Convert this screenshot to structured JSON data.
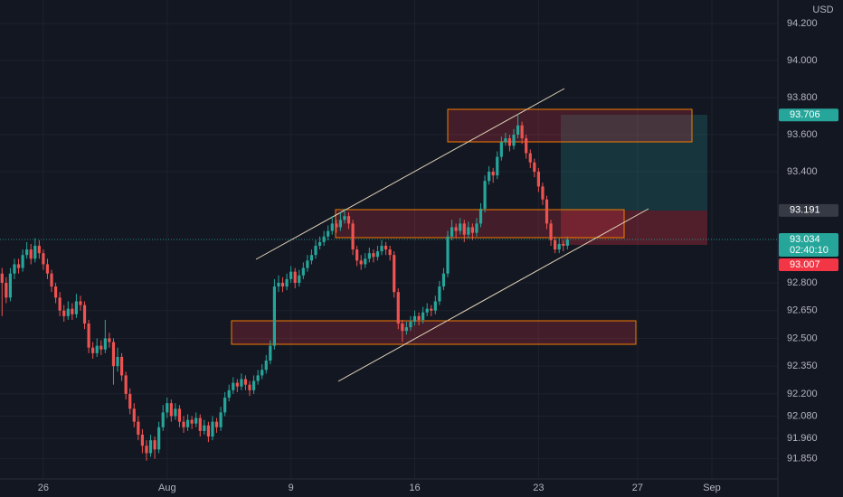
{
  "chart_data": {
    "type": "candlestick",
    "currency": "USD",
    "up_color": "#26a69a",
    "down_color": "#ef5350",
    "grid": true,
    "xlim": [
      -0.5,
      188
    ],
    "ylim": [
      91.741,
      94.327
    ],
    "xticks": [
      {
        "value": 10,
        "label": "26"
      },
      {
        "value": 40,
        "label": "Aug"
      },
      {
        "value": 70,
        "label": "9"
      },
      {
        "value": 100,
        "label": "16"
      },
      {
        "value": 130,
        "label": "23"
      },
      {
        "value": 154,
        "label": "27"
      },
      {
        "value": 172,
        "label": "Sep"
      }
    ],
    "yticks": [
      {
        "value": 94.2,
        "label": "94.200"
      },
      {
        "value": 94.0,
        "label": "94.000"
      },
      {
        "value": 93.8,
        "label": "93.800"
      },
      {
        "value": 93.6,
        "label": "93.600"
      },
      {
        "value": 93.4,
        "label": "93.400"
      },
      {
        "value": 92.8,
        "label": "92.800"
      },
      {
        "value": 92.65,
        "label": "92.650"
      },
      {
        "value": 92.5,
        "label": "92.500"
      },
      {
        "value": 92.35,
        "label": "92.350"
      },
      {
        "value": 92.2,
        "label": "92.200"
      },
      {
        "value": 92.08,
        "label": "92.080"
      },
      {
        "value": 91.96,
        "label": "91.960"
      },
      {
        "value": 91.85,
        "label": "91.850"
      }
    ],
    "price_labels": [
      {
        "value": 93.706,
        "label": "93.706",
        "color": "#26a69a"
      },
      {
        "value": 93.191,
        "label": "93.191",
        "color": "#363a45"
      },
      {
        "value": 93.034,
        "label": "93.034",
        "sublabel": "02:40:10",
        "color": "#26a69a"
      },
      {
        "value": 93.007,
        "label": "93.007",
        "color": "#f23645"
      }
    ],
    "ohlc": [
      [
        92.85,
        92.88,
        92.62,
        92.8
      ],
      [
        92.8,
        92.83,
        92.69,
        92.72
      ],
      [
        92.72,
        92.88,
        92.7,
        92.85
      ],
      [
        92.85,
        92.93,
        92.82,
        92.9
      ],
      [
        92.9,
        92.93,
        92.85,
        92.88
      ],
      [
        92.88,
        92.98,
        92.86,
        92.95
      ],
      [
        92.95,
        93.02,
        92.93,
        92.98
      ],
      [
        92.98,
        93.01,
        92.9,
        92.93
      ],
      [
        92.93,
        93.04,
        92.91,
        93.0
      ],
      [
        93.0,
        93.03,
        92.93,
        92.96
      ],
      [
        92.96,
        92.98,
        92.87,
        92.9
      ],
      [
        92.9,
        92.93,
        92.82,
        92.85
      ],
      [
        92.85,
        92.87,
        92.75,
        92.78
      ],
      [
        92.78,
        92.8,
        92.69,
        92.72
      ],
      [
        92.72,
        92.75,
        92.62,
        92.65
      ],
      [
        92.65,
        92.68,
        92.59,
        92.62
      ],
      [
        92.62,
        92.7,
        92.6,
        92.66
      ],
      [
        92.66,
        92.69,
        92.6,
        92.63
      ],
      [
        92.63,
        92.74,
        92.61,
        92.7
      ],
      [
        92.7,
        92.73,
        92.65,
        92.68
      ],
      [
        92.68,
        92.7,
        92.55,
        92.58
      ],
      [
        92.58,
        92.6,
        92.42,
        92.45
      ],
      [
        92.45,
        92.48,
        92.39,
        92.42
      ],
      [
        92.42,
        92.5,
        92.4,
        92.46
      ],
      [
        92.46,
        92.49,
        92.41,
        92.44
      ],
      [
        92.44,
        92.6,
        92.42,
        92.5
      ],
      [
        92.5,
        92.53,
        92.45,
        92.48
      ],
      [
        92.48,
        92.5,
        92.25,
        92.35
      ],
      [
        92.35,
        92.45,
        92.32,
        92.4
      ],
      [
        92.4,
        92.42,
        92.27,
        92.3
      ],
      [
        92.3,
        92.32,
        92.17,
        92.2
      ],
      [
        92.2,
        92.23,
        92.09,
        92.12
      ],
      [
        92.12,
        92.15,
        92.02,
        92.05
      ],
      [
        92.05,
        92.08,
        91.95,
        91.98
      ],
      [
        91.98,
        92.01,
        91.88,
        91.92
      ],
      [
        91.92,
        91.95,
        91.84,
        91.88
      ],
      [
        91.88,
        91.98,
        91.86,
        91.95
      ],
      [
        91.95,
        91.97,
        91.85,
        91.9
      ],
      [
        91.9,
        92.05,
        91.88,
        92.02
      ],
      [
        92.02,
        92.14,
        92.0,
        92.1
      ],
      [
        92.1,
        92.18,
        92.07,
        92.15
      ],
      [
        92.15,
        92.17,
        92.05,
        92.08
      ],
      [
        92.08,
        92.15,
        92.06,
        92.12
      ],
      [
        92.12,
        92.14,
        92.02,
        92.05
      ],
      [
        92.05,
        92.08,
        91.99,
        92.02
      ],
      [
        92.02,
        92.09,
        92.0,
        92.06
      ],
      [
        92.06,
        92.08,
        92.01,
        92.04
      ],
      [
        92.04,
        92.1,
        92.02,
        92.07
      ],
      [
        92.07,
        92.09,
        91.97,
        92.0
      ],
      [
        92.0,
        92.06,
        91.98,
        92.03
      ],
      [
        92.03,
        92.05,
        91.94,
        91.97
      ],
      [
        91.97,
        92.08,
        91.95,
        92.05
      ],
      [
        92.05,
        92.07,
        91.99,
        92.02
      ],
      [
        92.02,
        92.13,
        92.0,
        92.1
      ],
      [
        92.1,
        92.21,
        92.08,
        92.18
      ],
      [
        92.18,
        92.25,
        92.16,
        92.22
      ],
      [
        92.22,
        92.29,
        92.2,
        92.26
      ],
      [
        92.26,
        92.28,
        92.21,
        92.24
      ],
      [
        92.24,
        92.31,
        92.22,
        92.28
      ],
      [
        92.28,
        92.3,
        92.22,
        92.25
      ],
      [
        92.25,
        92.27,
        92.19,
        92.22
      ],
      [
        92.22,
        92.3,
        92.2,
        92.27
      ],
      [
        92.27,
        92.33,
        92.25,
        92.3
      ],
      [
        92.3,
        92.36,
        92.28,
        92.33
      ],
      [
        92.33,
        92.41,
        92.31,
        92.38
      ],
      [
        92.38,
        92.49,
        92.36,
        92.46
      ],
      [
        92.46,
        92.82,
        92.44,
        92.78
      ],
      [
        92.78,
        92.84,
        92.75,
        92.8
      ],
      [
        92.8,
        92.83,
        92.75,
        92.78
      ],
      [
        92.78,
        92.85,
        92.76,
        92.82
      ],
      [
        92.82,
        92.89,
        92.8,
        92.86
      ],
      [
        92.86,
        92.88,
        92.77,
        92.8
      ],
      [
        92.8,
        92.87,
        92.78,
        92.84
      ],
      [
        92.84,
        92.91,
        92.82,
        92.88
      ],
      [
        92.88,
        92.95,
        92.86,
        92.92
      ],
      [
        92.92,
        92.98,
        92.9,
        92.95
      ],
      [
        92.95,
        93.03,
        92.93,
        93.0
      ],
      [
        93.0,
        93.05,
        92.98,
        93.02
      ],
      [
        93.02,
        93.08,
        93.0,
        93.05
      ],
      [
        93.05,
        93.11,
        93.03,
        93.08
      ],
      [
        93.08,
        93.16,
        93.06,
        93.12
      ],
      [
        93.12,
        93.14,
        93.07,
        93.1
      ],
      [
        93.1,
        93.18,
        93.08,
        93.14
      ],
      [
        93.14,
        93.2,
        93.12,
        93.16
      ],
      [
        93.16,
        93.18,
        93.09,
        93.12
      ],
      [
        93.12,
        93.14,
        92.95,
        92.98
      ],
      [
        92.98,
        93.0,
        92.89,
        92.92
      ],
      [
        92.92,
        92.95,
        92.87,
        92.9
      ],
      [
        92.9,
        92.96,
        92.88,
        92.93
      ],
      [
        92.93,
        92.99,
        92.91,
        92.96
      ],
      [
        92.96,
        92.98,
        92.91,
        92.94
      ],
      [
        92.94,
        93.0,
        92.92,
        92.97
      ],
      [
        92.97,
        93.03,
        92.95,
        93.0
      ],
      [
        93.0,
        93.02,
        92.95,
        92.98
      ],
      [
        92.98,
        93.0,
        92.92,
        92.95
      ],
      [
        92.95,
        92.97,
        92.72,
        92.75
      ],
      [
        92.75,
        92.77,
        92.55,
        92.58
      ],
      [
        92.58,
        92.6,
        92.48,
        92.54
      ],
      [
        92.54,
        92.59,
        92.52,
        92.56
      ],
      [
        92.56,
        92.62,
        92.54,
        92.59
      ],
      [
        92.59,
        92.65,
        92.57,
        92.62
      ],
      [
        92.62,
        92.64,
        92.57,
        92.6
      ],
      [
        92.6,
        92.67,
        92.58,
        92.64
      ],
      [
        92.64,
        92.69,
        92.62,
        92.66
      ],
      [
        92.66,
        92.68,
        92.62,
        92.65
      ],
      [
        92.65,
        92.73,
        92.63,
        92.7
      ],
      [
        92.7,
        92.81,
        92.68,
        92.78
      ],
      [
        92.78,
        92.88,
        92.76,
        92.85
      ],
      [
        92.85,
        93.08,
        92.83,
        93.05
      ],
      [
        93.05,
        93.14,
        93.03,
        93.1
      ],
      [
        93.1,
        93.12,
        93.04,
        93.08
      ],
      [
        93.08,
        93.15,
        93.06,
        93.12
      ],
      [
        93.12,
        93.14,
        93.02,
        93.06
      ],
      [
        93.06,
        93.13,
        93.04,
        93.1
      ],
      [
        93.1,
        93.12,
        93.03,
        93.07
      ],
      [
        93.07,
        93.15,
        93.05,
        93.12
      ],
      [
        93.12,
        93.23,
        93.1,
        93.2
      ],
      [
        93.2,
        93.38,
        93.18,
        93.35
      ],
      [
        93.35,
        93.43,
        93.33,
        93.4
      ],
      [
        93.4,
        93.42,
        93.34,
        93.38
      ],
      [
        93.38,
        93.51,
        93.36,
        93.48
      ],
      [
        93.48,
        93.59,
        93.46,
        93.56
      ],
      [
        93.56,
        93.61,
        93.54,
        93.58
      ],
      [
        93.58,
        93.6,
        93.51,
        93.54
      ],
      [
        93.54,
        93.63,
        93.52,
        93.6
      ],
      [
        93.6,
        93.71,
        93.58,
        93.65
      ],
      [
        93.65,
        93.67,
        93.55,
        93.58
      ],
      [
        93.58,
        93.6,
        93.47,
        93.5
      ],
      [
        93.5,
        93.52,
        93.42,
        93.45
      ],
      [
        93.45,
        93.47,
        93.37,
        93.4
      ],
      [
        93.4,
        93.42,
        93.29,
        93.32
      ],
      [
        93.32,
        93.34,
        93.22,
        93.25
      ],
      [
        93.25,
        93.27,
        93.09,
        93.12
      ],
      [
        93.12,
        93.14,
        93.0,
        93.03
      ],
      [
        93.03,
        93.05,
        92.96,
        92.98
      ],
      [
        92.98,
        93.04,
        92.96,
        93.01
      ],
      [
        93.01,
        93.03,
        92.97,
        93.0
      ],
      [
        93.0,
        93.05,
        92.98,
        93.034
      ]
    ]
  }
}
